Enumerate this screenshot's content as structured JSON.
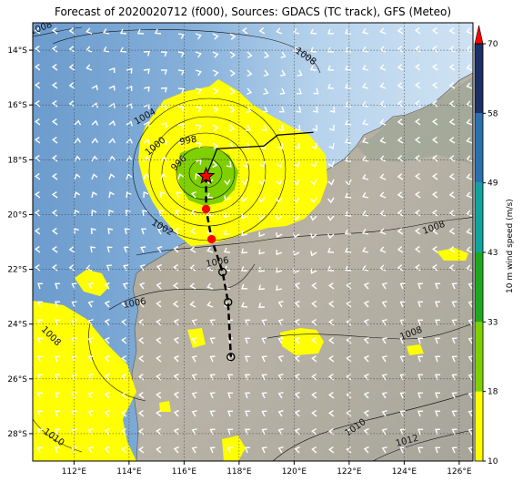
{
  "title": "Forecast of 2020020712 (f000), Sources: GDACS (TC track), GFS (Meteo)",
  "map": {
    "lon_range": [
      110.5,
      126.5
    ],
    "lat_range": [
      -29.0,
      -13.0
    ],
    "x_ticks": [
      {
        "lon": 112,
        "label": "112°E"
      },
      {
        "lon": 114,
        "label": "114°E"
      },
      {
        "lon": 116,
        "label": "116°E"
      },
      {
        "lon": 118,
        "label": "118°E"
      },
      {
        "lon": 120,
        "label": "120°E"
      },
      {
        "lon": 122,
        "label": "122°E"
      },
      {
        "lon": 124,
        "label": "124°E"
      },
      {
        "lon": 126,
        "label": "126°E"
      }
    ],
    "y_ticks": [
      {
        "lat": -14,
        "label": "14°S"
      },
      {
        "lat": -16,
        "label": "16°S"
      },
      {
        "lat": -18,
        "label": "18°S"
      },
      {
        "lat": -20,
        "label": "20°S"
      },
      {
        "lat": -22,
        "label": "22°S"
      },
      {
        "lat": -24,
        "label": "24°S"
      },
      {
        "lat": -26,
        "label": "26°S"
      },
      {
        "lat": -28,
        "label": "28°S"
      }
    ],
    "grid": "dotted"
  },
  "chart_data": {
    "type": "map",
    "storm_center": {
      "lon": 116.8,
      "lat": -18.6
    },
    "track_forecast": [
      {
        "lon": 116.8,
        "lat": -18.6
      },
      {
        "lon": 116.8,
        "lat": -19.8
      },
      {
        "lon": 117.0,
        "lat": -20.9
      },
      {
        "lon": 117.4,
        "lat": -22.1
      },
      {
        "lon": 117.6,
        "lat": -23.2
      },
      {
        "lon": 117.7,
        "lat": -25.2
      }
    ],
    "track_past": [
      {
        "lon": 120.7,
        "lat": -17.0
      },
      {
        "lon": 119.4,
        "lat": -17.1
      },
      {
        "lon": 118.9,
        "lat": -17.5
      },
      {
        "lon": 117.2,
        "lat": -17.6
      },
      {
        "lon": 116.8,
        "lat": -18.6
      }
    ],
    "isobar_labels": [
      "1008",
      "1008",
      "1004",
      "1000",
      "998",
      "996",
      "1002",
      "1006",
      "1006",
      "1008",
      "1008",
      "1008",
      "1010",
      "1010",
      "1012"
    ],
    "colorbar": {
      "label": "10 m wind speed (m/s)",
      "ticks": [
        "10",
        "18",
        "33",
        "43",
        "49",
        "58",
        "70"
      ],
      "colors": [
        "#ffff00",
        "#7fd000",
        "#1fa81f",
        "#13a39f",
        "#2a70ae",
        "#1b2f68"
      ],
      "extend_color": "#ff0000"
    }
  }
}
